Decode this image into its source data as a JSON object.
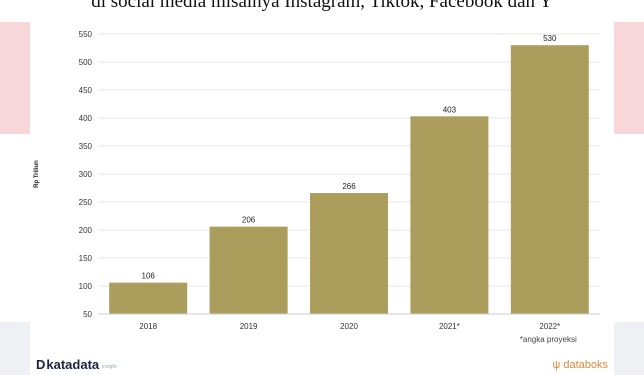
{
  "page": {
    "article_text": "di social media misalnya Instagram, Tiktok, Facebook dan Y"
  },
  "chart_data": {
    "type": "bar",
    "categories": [
      "2018",
      "2019",
      "2020",
      "2021*",
      "2022*"
    ],
    "values": [
      106,
      206,
      266,
      403,
      530
    ],
    "value_labels": [
      "106",
      "206",
      "266",
      "403",
      "530"
    ],
    "title": "",
    "xlabel": "",
    "ylabel": "Rp Triliun",
    "ylim": [
      50,
      550
    ],
    "yticks": [
      50,
      100,
      150,
      200,
      250,
      300,
      350,
      400,
      450,
      500,
      550
    ],
    "grid": true,
    "bar_color": "#ab9d5b",
    "note": "*angka proyeksi"
  },
  "footer": {
    "logo_mark": "D",
    "logo_text": "katadata",
    "logo_sub": "insight",
    "brand_icon": "databoks-leaf-icon",
    "brand_text": "databoks",
    "brand_color": "#e08a3c"
  }
}
